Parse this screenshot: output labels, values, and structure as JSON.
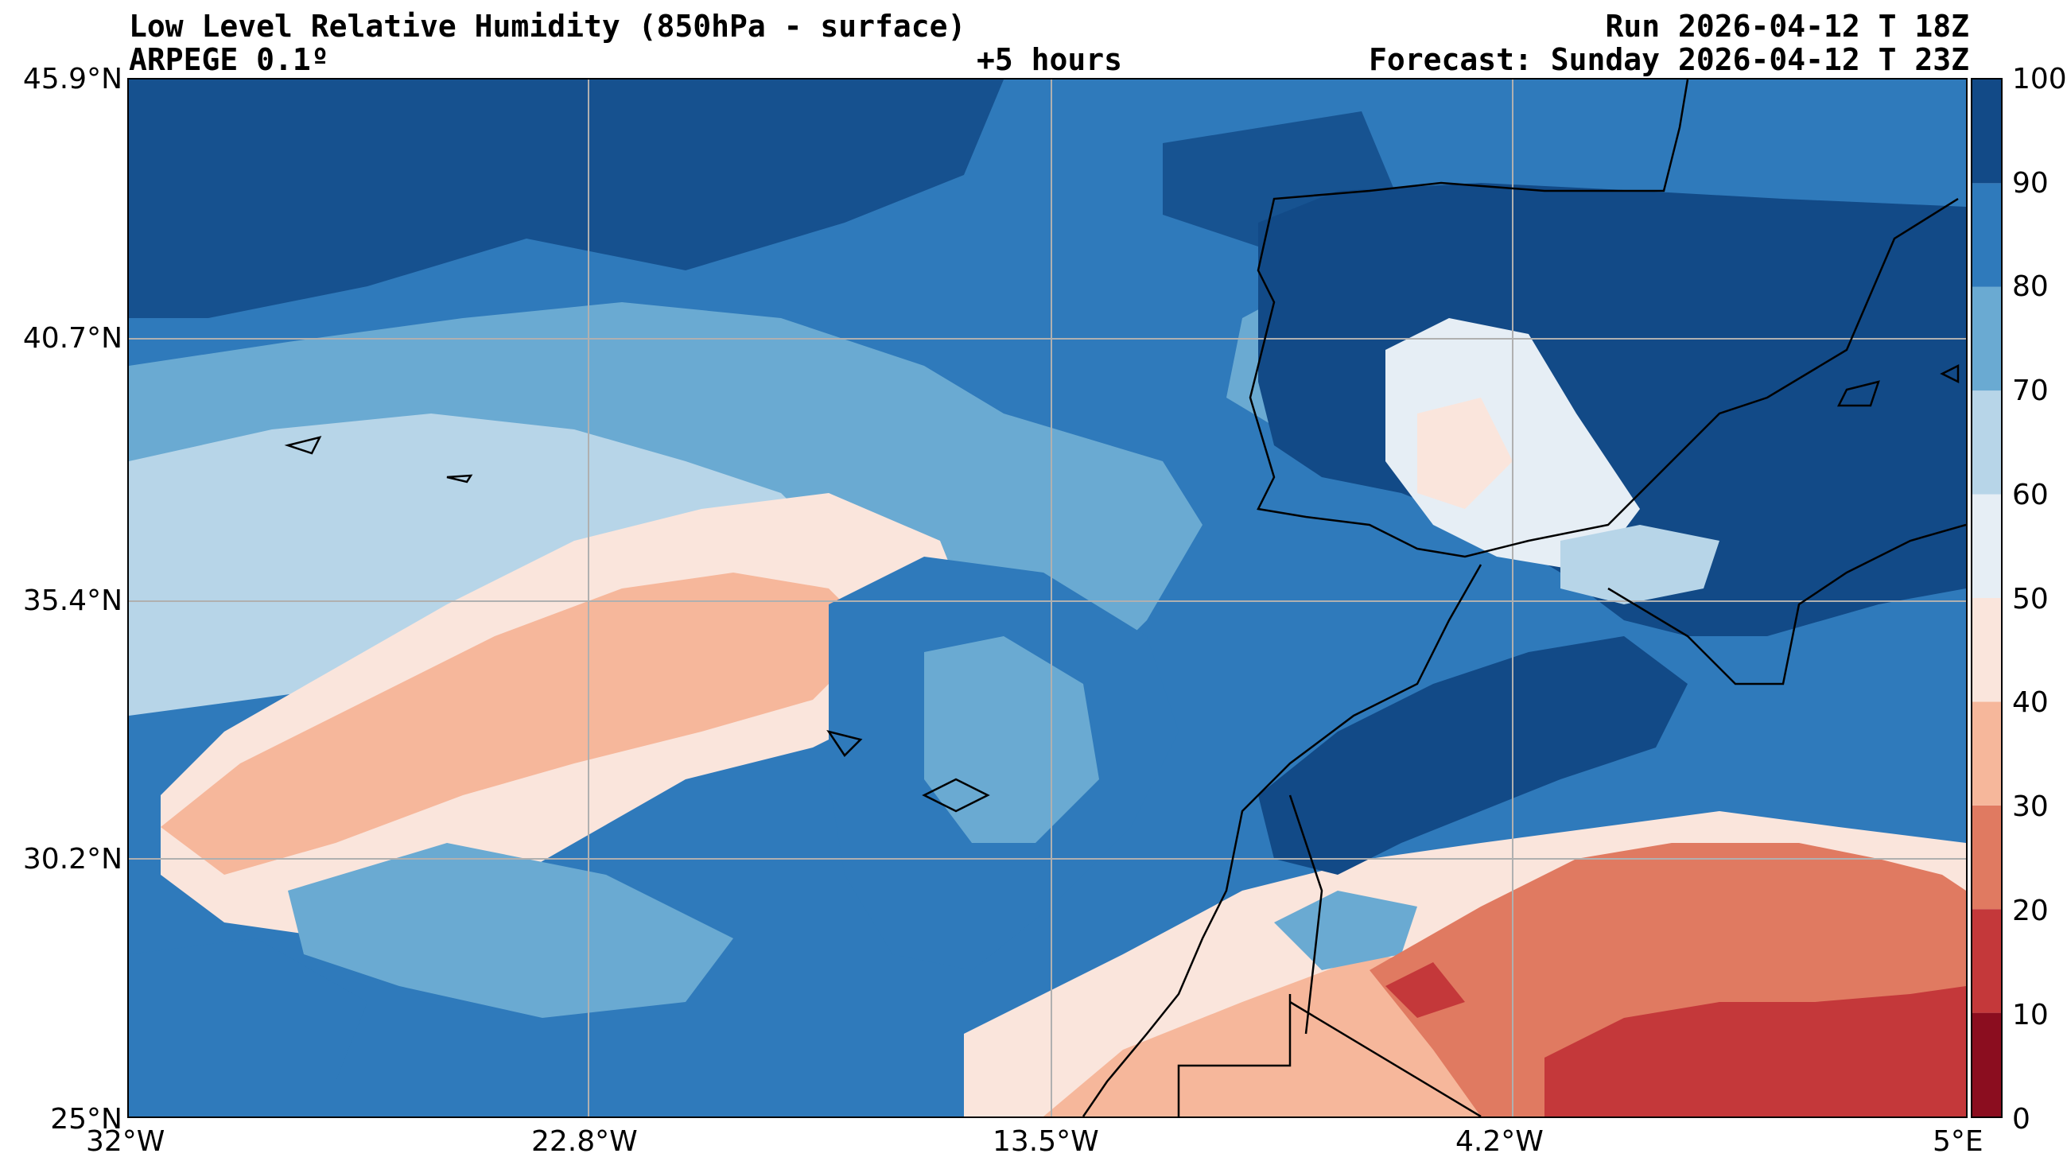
{
  "header": {
    "title": "Low Level Relative Humidity (850hPa - surface)",
    "model": "ARPEGE 0.1º",
    "lead": "+5 hours",
    "run": "Run 2026-04-12 T 18Z",
    "forecast": "Forecast: Sunday 2026-04-12 T 23Z"
  },
  "map": {
    "lat_labels": [
      "45.9°N",
      "40.7°N",
      "35.4°N",
      "30.2°N",
      "25°N"
    ],
    "lon_labels": [
      "32°W",
      "22.8°W",
      "13.5°W",
      "4.2°W",
      "5°E"
    ],
    "lat_range": [
      25,
      45.9
    ],
    "lon_range": [
      -32,
      5
    ]
  },
  "colorbar": {
    "ticks": [
      "100",
      "90",
      "80",
      "70",
      "60",
      "50",
      "40",
      "30",
      "20",
      "10",
      "0"
    ],
    "levels": [
      0,
      10,
      20,
      30,
      40,
      50,
      60,
      70,
      80,
      90,
      100
    ],
    "colors": [
      "#8b0d1f",
      "#c4383a",
      "#e07a61",
      "#f6b79b",
      "#fae5dc",
      "#e6eef5",
      "#b7d5e8",
      "#6aaad2",
      "#2f7abb",
      "#124a87"
    ]
  }
}
